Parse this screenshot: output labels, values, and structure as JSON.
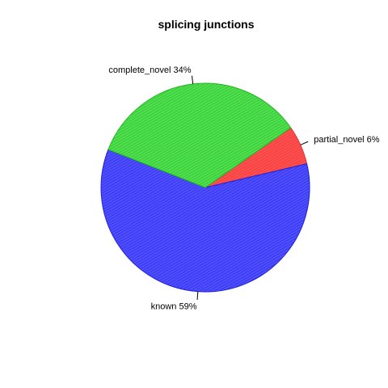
{
  "chart_data": {
    "type": "pie",
    "title": "splicing junctions",
    "slices": [
      {
        "label": "partial_novel 6%",
        "name": "partial_novel",
        "percent": 6,
        "color": "#ff4f4f",
        "border": "#e03030"
      },
      {
        "label": "known 59%",
        "name": "known",
        "percent": 59,
        "color": "#4f4fff",
        "border": "#2020d8"
      },
      {
        "label": "complete_novel 34%",
        "name": "complete_novel",
        "percent": 34,
        "color": "#4fdf4f",
        "border": "#22b522"
      }
    ],
    "start_angle_deg": 35,
    "direction": "clockwise",
    "hatched": true
  }
}
